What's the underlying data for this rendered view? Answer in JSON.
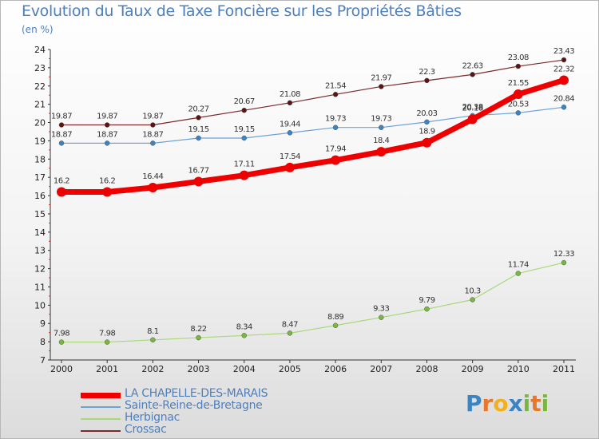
{
  "title": "Evolution du Taux de Taxe Foncière sur les Propriétés Bâties",
  "unit_label": "(en %)",
  "logo": {
    "letters": [
      "P",
      "r",
      "o",
      "x",
      "i",
      "t",
      "i"
    ],
    "colors": [
      "#3a84c4",
      "#e8762b",
      "#f2b01e",
      "#3a84c4",
      "#7ab740",
      "#e8762b",
      "#7ab740"
    ]
  },
  "chart_data": {
    "type": "line",
    "x": [
      "2000",
      "2001",
      "2002",
      "2003",
      "2004",
      "2005",
      "2006",
      "2007",
      "2008",
      "2009",
      "2010",
      "2011"
    ],
    "ylim": [
      7,
      24
    ],
    "yticks": [
      "7",
      "8",
      "9",
      "10",
      "11",
      "12",
      "13",
      "14",
      "15",
      "16",
      "17",
      "18",
      "19",
      "20",
      "21",
      "22",
      "23",
      "24"
    ],
    "grid": false,
    "legend_position": "bottom-left",
    "series": [
      {
        "name": "Crossac",
        "color": "#7b2a2a",
        "marker": "#5a1414",
        "width": 1.2,
        "r": 3,
        "values": [
          19.87,
          19.87,
          19.87,
          20.27,
          20.67,
          21.08,
          21.54,
          21.97,
          22.3,
          22.63,
          23.08,
          23.43
        ],
        "labels": [
          "19.87",
          "19.87",
          "19.87",
          "20.27",
          "20.67",
          "21.08",
          "21.54",
          "21.97",
          "22.3",
          "22.63",
          "23.08",
          "23.43"
        ]
      },
      {
        "name": "Sainte-Reine-de-Bretagne",
        "color": "#6ea3d6",
        "marker": "#3a84c4",
        "width": 1.2,
        "r": 3,
        "values": [
          18.87,
          18.87,
          18.87,
          19.15,
          19.15,
          19.44,
          19.73,
          19.73,
          20.03,
          20.38,
          20.53,
          20.84
        ],
        "labels": [
          "18.87",
          "18.87",
          "18.87",
          "19.15",
          "19.15",
          "19.44",
          "19.73",
          "19.73",
          "20.03",
          "20.38",
          "20.53",
          "20.84"
        ]
      },
      {
        "name": "LA CHAPELLE-DES-MARAIS",
        "color": "#ee0000",
        "marker": "#ee0000",
        "width": 7,
        "r": 6,
        "values": [
          16.2,
          16.2,
          16.44,
          16.77,
          17.11,
          17.54,
          17.94,
          18.4,
          18.9,
          20.18,
          21.55,
          22.32
        ],
        "labels": [
          "16.2",
          "16.2",
          "16.44",
          "16.77",
          "17.11",
          "17.54",
          "17.94",
          "18.4",
          "18.9",
          "20.18",
          "21.55",
          "22.32"
        ]
      },
      {
        "name": "Herbignac",
        "color": "#a8d878",
        "marker": "#7ab740",
        "width": 1.2,
        "r": 3,
        "values": [
          7.98,
          7.98,
          8.1,
          8.22,
          8.34,
          8.47,
          8.89,
          9.33,
          9.79,
          10.3,
          11.74,
          12.33
        ],
        "labels": [
          "7.98",
          "7.98",
          "8.1",
          "8.22",
          "8.34",
          "8.47",
          "8.89",
          "9.33",
          "9.79",
          "10.3",
          "11.74",
          "12.33"
        ]
      }
    ],
    "legend": [
      {
        "name": "LA CHAPELLE-DES-MARAIS",
        "color": "#ee0000",
        "thickness": 7
      },
      {
        "name": "Sainte-Reine-de-Bretagne",
        "color": "#6ea3d6",
        "thickness": 2
      },
      {
        "name": "Herbignac",
        "color": "#a8d878",
        "thickness": 2
      },
      {
        "name": "Crossac",
        "color": "#7b2a2a",
        "thickness": 2
      }
    ]
  }
}
